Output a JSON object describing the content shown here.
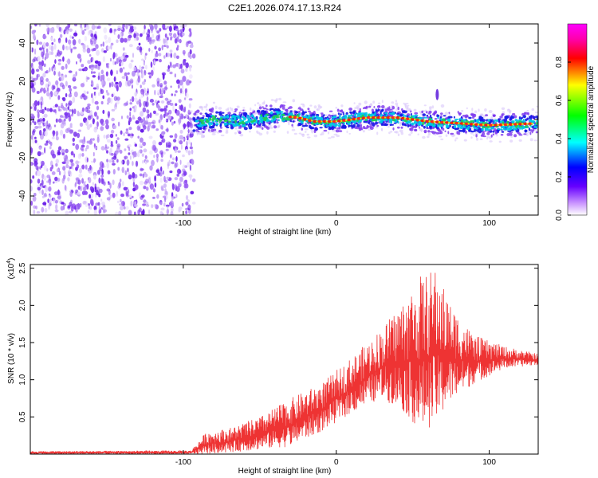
{
  "title": "C2E1.2026.074.17.13.R24",
  "chart_data": [
    {
      "type": "heatmap",
      "name": "spectrogram",
      "xlabel": "Height of straight line (km)",
      "ylabel": "Frequency (Hz)",
      "xlim": [
        -200,
        132
      ],
      "ylim": [
        -50,
        50
      ],
      "xticks": [
        -100,
        0,
        100
      ],
      "yticks": [
        -40,
        -20,
        0,
        20,
        40
      ],
      "noise_region_x": [
        -200,
        -93
      ],
      "signal_trace": {
        "x": [
          -93,
          -80,
          -60,
          -40,
          -25,
          -15,
          0,
          20,
          40,
          60,
          80,
          100,
          132
        ],
        "y": [
          -2,
          0,
          -1,
          2,
          1,
          -1,
          -1,
          1,
          1,
          -1,
          -2,
          -3,
          -2
        ]
      },
      "spike": {
        "x": 66,
        "y": 13
      },
      "colorbar": {
        "label": "Normalized spectral amplitude",
        "range": [
          0,
          1
        ],
        "ticks": [
          "0.0",
          "0.2",
          "0.4",
          "0.6",
          "0.8"
        ]
      }
    },
    {
      "type": "line",
      "name": "snr",
      "xlabel": "Height of straight line (km)",
      "ylabel": "SNR (10 * v/v)",
      "scale_label": "(x10",
      "scale_exponent": "4",
      "series_color": "#ee3333",
      "xlim": [
        -200,
        132
      ],
      "ylim": [
        0,
        2.55
      ],
      "xticks": [
        -100,
        0,
        100
      ],
      "yticks": [
        "0.5",
        "1.0",
        "1.5",
        "2.0",
        "2.5"
      ],
      "envelope": {
        "x": [
          -200,
          -95,
          -85,
          -70,
          -50,
          -30,
          -10,
          10,
          30,
          45,
          55,
          65,
          75,
          90,
          110,
          132
        ],
        "lower": [
          0.0,
          0.0,
          0.0,
          0.02,
          0.06,
          0.1,
          0.3,
          0.55,
          0.75,
          0.55,
          0.3,
          0.4,
          0.7,
          0.95,
          1.15,
          1.2
        ],
        "upper": [
          0.04,
          0.05,
          0.3,
          0.35,
          0.5,
          0.75,
          0.95,
          1.3,
          1.7,
          2.1,
          2.4,
          2.5,
          2.0,
          1.6,
          1.45,
          1.35
        ]
      }
    }
  ]
}
